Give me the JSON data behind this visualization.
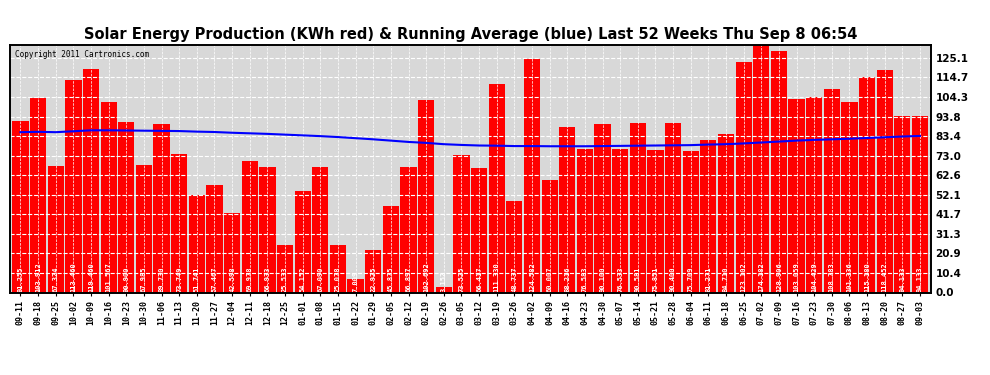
{
  "title": "Solar Energy Production (KWh red) & Running Average (blue) Last 52 Weeks Thu Sep 8 06:54",
  "copyright": "Copyright 2011 Cartronics.com",
  "bar_color": "#ff0000",
  "avg_color": "#0000ff",
  "bg_color": "#ffffff",
  "plot_bg_color": "#ffffff",
  "grid_color": "#aaaaaa",
  "title_fontsize": 10.5,
  "tick_fontsize": 6.0,
  "ytick_right_fontsize": 7.5,
  "value_label_fontsize": 5.0,
  "ylim": [
    0,
    132
  ],
  "yticks": [
    0.0,
    10.4,
    20.9,
    31.3,
    41.7,
    52.1,
    62.6,
    73.0,
    83.4,
    93.8,
    104.3,
    114.7,
    125.1
  ],
  "dates": [
    "09-11",
    "09-18",
    "09-25",
    "10-02",
    "10-09",
    "10-16",
    "10-23",
    "10-30",
    "11-06",
    "11-13",
    "11-20",
    "11-27",
    "12-04",
    "12-11",
    "12-18",
    "12-25",
    "01-01",
    "01-08",
    "01-15",
    "01-22",
    "01-29",
    "02-05",
    "02-12",
    "02-19",
    "02-26",
    "03-05",
    "03-12",
    "03-19",
    "03-26",
    "04-02",
    "04-09",
    "04-16",
    "04-23",
    "04-30",
    "05-07",
    "05-14",
    "05-21",
    "05-28",
    "06-04",
    "06-11",
    "06-18",
    "06-25",
    "07-02",
    "07-09",
    "07-16",
    "07-23",
    "07-30",
    "08-06",
    "08-13",
    "08-20",
    "08-27",
    "09-03"
  ],
  "values": [
    91.255,
    103.912,
    67.324,
    113.46,
    119.46,
    101.567,
    90.9,
    67.985,
    89.73,
    73.749,
    51.741,
    57.467,
    42.598,
    69.978,
    66.933,
    25.533,
    54.152,
    67.09,
    25.078,
    7.009,
    22.925,
    45.875,
    66.897,
    102.692,
    3.152,
    73.525,
    66.417,
    111.33,
    48.737,
    124.582,
    60.007,
    88.216,
    76.583,
    90.1,
    76.533,
    90.581,
    75.851,
    90.4,
    75.709,
    81.271,
    84.71,
    123.102,
    174.182,
    128.906,
    103.059,
    104.429,
    108.783,
    101.336,
    115.18,
    118.452,
    94.133,
    94.133
  ],
  "running_avg": [
    85.5,
    85.7,
    85.5,
    86.0,
    86.5,
    86.5,
    86.4,
    86.3,
    86.2,
    86.1,
    85.8,
    85.6,
    85.2,
    84.9,
    84.6,
    84.2,
    83.8,
    83.4,
    82.9,
    82.3,
    81.7,
    81.0,
    80.3,
    79.8,
    79.1,
    78.7,
    78.4,
    78.3,
    78.1,
    78.1,
    78.0,
    78.0,
    78.0,
    78.1,
    78.2,
    78.3,
    78.4,
    78.5,
    78.6,
    78.9,
    79.1,
    79.5,
    80.0,
    80.5,
    81.0,
    81.4,
    81.7,
    82.0,
    82.4,
    82.8,
    83.2,
    83.5
  ]
}
